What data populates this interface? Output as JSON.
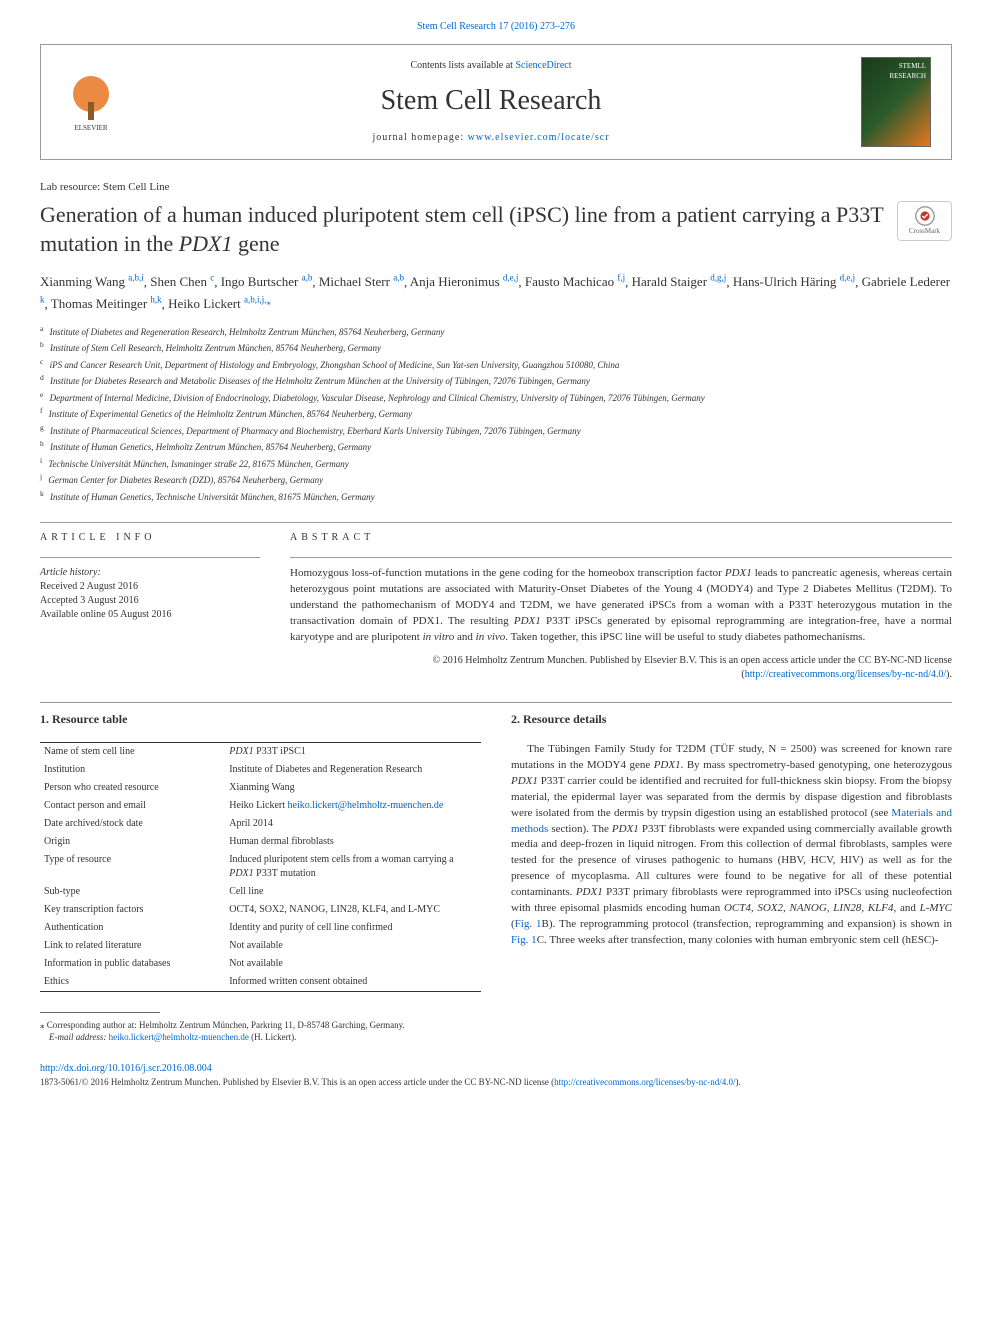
{
  "colors": {
    "link": "#0066cc",
    "text": "#333333",
    "border": "#999999",
    "elsevier_orange": "#e87722"
  },
  "top_citation": {
    "text": "Stem Cell Research 17 (2016) 273–276",
    "href_text": "Stem Cell Research 17 (2016) 273–276"
  },
  "header": {
    "contents_prefix": "Contents lists available at ",
    "contents_link": "ScienceDirect",
    "journal_name": "Stem Cell Research",
    "homepage_prefix": "journal homepage: ",
    "homepage_link": "www.elsevier.com/locate/scr",
    "publisher_logo_alt": "ELSEVIER",
    "cover_alt": "Stem Cell Research cover"
  },
  "article": {
    "type": "Lab resource: Stem Cell Line",
    "title_pre": "Generation of a human induced pluripotent stem cell (iPSC) line from a patient carrying a P33T mutation in the ",
    "title_gene": "PDX1",
    "title_post": " gene",
    "crossmark_label": "CrossMark"
  },
  "authors": [
    {
      "name": "Xianming Wang",
      "aff": "a,b,i"
    },
    {
      "name": "Shen Chen",
      "aff": "c"
    },
    {
      "name": "Ingo Burtscher",
      "aff": "a,b"
    },
    {
      "name": "Michael Sterr",
      "aff": "a,b"
    },
    {
      "name": "Anja Hieronimus",
      "aff": "d,e,j"
    },
    {
      "name": "Fausto Machicao",
      "aff": "f,j"
    },
    {
      "name": "Harald Staiger",
      "aff": "d,g,j"
    },
    {
      "name": "Hans-Ulrich Häring",
      "aff": "d,e,j"
    },
    {
      "name": "Gabriele Lederer",
      "aff": "k"
    },
    {
      "name": "Thomas Meitinger",
      "aff": "h,k"
    },
    {
      "name": "Heiko Lickert",
      "aff": "a,b,i,j,",
      "corr": true
    }
  ],
  "affiliations": [
    {
      "key": "a",
      "text": "Institute of Diabetes and Regeneration Research, Helmholtz Zentrum München, 85764 Neuherberg, Germany"
    },
    {
      "key": "b",
      "text": "Institute of Stem Cell Research, Helmholtz Zentrum München, 85764 Neuherberg, Germany"
    },
    {
      "key": "c",
      "text": "iPS and Cancer Research Unit, Department of Histology and Embryology, Zhongshan School of Medicine, Sun Yat-sen University, Guangzhou 510080, China"
    },
    {
      "key": "d",
      "text": "Institute for Diabetes Research and Metabolic Diseases of the Helmholtz Zentrum München at the University of Tübingen, 72076 Tübingen, Germany"
    },
    {
      "key": "e",
      "text": "Department of Internal Medicine, Division of Endocrinology, Diabetology, Vascular Disease, Nephrology and Clinical Chemistry, University of Tübingen, 72076 Tübingen, Germany"
    },
    {
      "key": "f",
      "text": "Institute of Experimental Genetics of the Helmholtz Zentrum München, 85764 Neuherberg, Germany"
    },
    {
      "key": "g",
      "text": "Institute of Pharmaceutical Sciences, Department of Pharmacy and Biochemistry, Eberhard Karls University Tübingen, 72076 Tübingen, Germany"
    },
    {
      "key": "h",
      "text": "Institute of Human Genetics, Helmholtz Zentrum München, 85764 Neuherberg, Germany"
    },
    {
      "key": "i",
      "text": "Technische Universität München, Ismaninger straße 22, 81675 München, Germany"
    },
    {
      "key": "j",
      "text": "German Center for Diabetes Research (DZD), 85764 Neuherberg, Germany"
    },
    {
      "key": "k",
      "text": "Institute of Human Genetics, Technische Universität München, 81675 München, Germany"
    }
  ],
  "info": {
    "heading": "article info",
    "history_label": "Article history:",
    "received": "Received 2 August 2016",
    "accepted": "Accepted 3 August 2016",
    "online": "Available online 05 August 2016"
  },
  "abstract": {
    "heading": "abstract",
    "text_parts": [
      "Homozygous loss-of-function mutations in the gene coding for the homeobox transcription factor ",
      "PDX1",
      " leads to pancreatic agenesis, whereas certain heterozygous point mutations are associated with Maturity-Onset Diabetes of the Young 4 (MODY4) and Type 2 Diabetes Mellitus (T2DM). To understand the pathomechanism of MODY4 and T2DM, we have generated iPSCs from a woman with a P33T heterozygous mutation in the transactivation domain of PDX1. The resulting ",
      "PDX1",
      " P33T iPSCs generated by episomal reprogramming are integration-free, have a normal karyotype and are pluripotent ",
      "in vitro",
      " and ",
      "in vivo",
      ". Taken together, this iPSC line will be useful to study diabetes pathomechanisms."
    ],
    "copyright_pre": "© 2016 Helmholtz Zentrum Munchen. Published by Elsevier B.V. This is an open access article under the CC BY-NC-ND license (",
    "copyright_link": "http://creativecommons.org/licenses/by-nc-nd/4.0/",
    "copyright_post": ")."
  },
  "sections": {
    "resource_table_heading": "1. Resource table",
    "resource_details_heading": "2. Resource details"
  },
  "resource_table": [
    {
      "label": "Name of stem cell line",
      "value_html": "<em>PDX1</em> P33T iPSC1"
    },
    {
      "label": "Institution",
      "value_html": "Institute of Diabetes and Regeneration Research"
    },
    {
      "label": "Person who created resource",
      "value_html": "Xianming Wang"
    },
    {
      "label": "Contact person and email",
      "value_html": "Heiko Lickert <a href='#'>heiko.lickert@helmholtz-muenchen.de</a>"
    },
    {
      "label": "Date archived/stock date",
      "value_html": "April 2014"
    },
    {
      "label": "Origin",
      "value_html": "Human dermal fibroblasts"
    },
    {
      "label": "Type of resource",
      "value_html": "Induced pluripotent stem cells from a woman carrying a <em>PDX1</em> P33T mutation"
    },
    {
      "label": "Sub-type",
      "value_html": "Cell line"
    },
    {
      "label": "Key transcription factors",
      "value_html": "OCT4, SOX2, NANOG, LIN28, KLF4, and L-MYC"
    },
    {
      "label": "Authentication",
      "value_html": "Identity and purity of cell line confirmed"
    },
    {
      "label": "Link to related literature",
      "value_html": "Not available"
    },
    {
      "label": "Information in public databases",
      "value_html": "Not available"
    },
    {
      "label": "Ethics",
      "value_html": "Informed written consent obtained"
    }
  ],
  "resource_details_body": {
    "p1": "The Tübingen Family Study for T2DM (TÜF study, N = 2500) was screened for known rare mutations in the MODY4 gene ",
    "p1_em1": "PDX1",
    "p1_2": ". By mass spectrometry-based genotyping, one heterozygous ",
    "p1_em2": "PDX1",
    "p1_3": " P33T carrier could be identified and recruited for full-thickness skin biopsy. From the biopsy material, the epidermal layer was separated from the dermis by dispase digestion and fibroblasts were isolated from the dermis by trypsin digestion using an established protocol (see ",
    "p1_link1": "Materials and methods",
    "p1_4": " section). The ",
    "p1_em3": "PDX1",
    "p1_5": " P33T fibroblasts were expanded using commercially available growth media and deep-frozen in liquid nitrogen. From this collection of dermal fibroblasts, samples were tested for the presence of viruses pathogenic to humans (HBV, HCV, HIV) as well as for the presence of mycoplasma. All cultures were found to be negative for all of these potential contaminants. ",
    "p1_em4": "PDX1",
    "p1_6": " P33T primary fibroblasts were reprogrammed into iPSCs using nucleofection with three episomal plasmids encoding human ",
    "p1_em5": "OCT4, SOX2, NANOG, LIN28, KLF4",
    "p1_7": ", and ",
    "p1_em6": "L-MYC",
    "p1_8": " (",
    "p1_link2": "Fig. 1",
    "p1_9": "B). The reprogramming protocol (transfection, reprogramming and expansion) is shown in ",
    "p1_link3": "Fig. 1",
    "p1_10": "C. Three weeks after transfection, many colonies with human embryonic stem cell (hESC)-"
  },
  "corr_footnote": {
    "star": "⁎",
    "text": " Corresponding author at: Helmholtz Zentrum München, Parkring 11, D-85748 Garching, Germany.",
    "email_label": "E-mail address: ",
    "email": "heiko.lickert@helmholtz-muenchen.de",
    "email_suffix": " (H. Lickert)."
  },
  "footer": {
    "doi": "http://dx.doi.org/10.1016/j.scr.2016.08.004",
    "issn_line_pre": "1873-5061/© 2016 Helmholtz Zentrum Munchen. Published by Elsevier B.V. This is an open access article under the CC BY-NC-ND license (",
    "issn_link": "http://creativecommons.org/licenses/by-nc-nd/4.0/",
    "issn_line_post": ")."
  }
}
